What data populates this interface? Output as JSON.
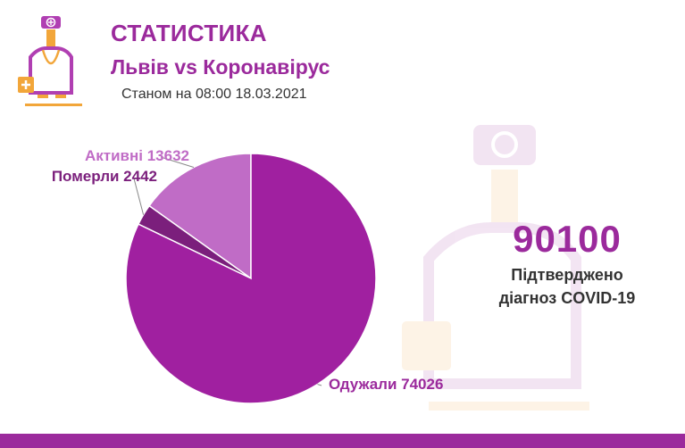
{
  "header": {
    "title": "СТАТИСТИКА",
    "subtitle": "Львів vs Коронавірус",
    "date": "Станом на 08:00 18.03.2021"
  },
  "summary": {
    "total": "90100",
    "caption_line1": "Підтверджено",
    "caption_line2": "діагноз COVID-19"
  },
  "colors": {
    "accent": "#9b2a9c",
    "recovered": "#a020a0",
    "active": "#c06cc6",
    "died": "#7b1f7c",
    "text_dark": "#333333"
  },
  "chart_data": {
    "type": "pie",
    "slices": [
      {
        "name": "Активні",
        "value": 13632,
        "label": "Активні 13632",
        "color": "#c06cc6"
      },
      {
        "name": "Померли",
        "value": 2442,
        "label": "Померли 2442",
        "color": "#7b1f7c"
      },
      {
        "name": "Одужали",
        "value": 74026,
        "label": "Одужали 74026",
        "color": "#a020a0"
      }
    ],
    "legend": "none"
  }
}
